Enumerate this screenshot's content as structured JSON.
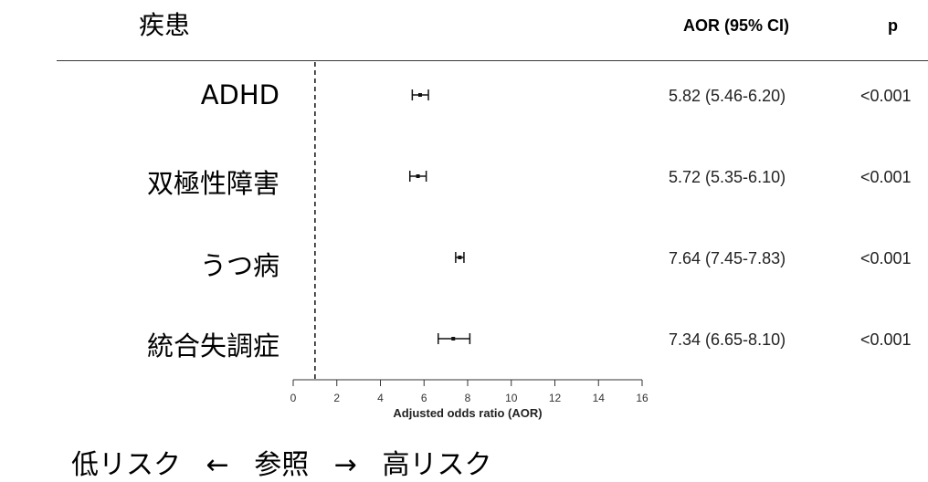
{
  "header": {
    "disease_label": "疾患",
    "aor_label": "AOR (95% CI)",
    "p_label": "p"
  },
  "rows": [
    {
      "disease": "ADHD",
      "aor_text": "5.82 (5.46-6.20)",
      "p": "<0.001"
    },
    {
      "disease": "双極性障害",
      "aor_text": "5.72 (5.35-6.10)",
      "p": "<0.001"
    },
    {
      "disease": "うつ病",
      "aor_text": "7.64 (7.45-7.83)",
      "p": "<0.001"
    },
    {
      "disease": "統合失調症",
      "aor_text": "7.34 (6.65-8.10)",
      "p": "<0.001"
    }
  ],
  "chart_data": {
    "type": "forest",
    "xlabel": "Adjusted odds ratio (AOR)",
    "xlim": [
      0,
      16
    ],
    "xticks": [
      0,
      2,
      4,
      6,
      8,
      10,
      12,
      14,
      16
    ],
    "reference_line": 1,
    "categories": [
      "ADHD",
      "双極性障害",
      "うつ病",
      "統合失調症"
    ],
    "estimates": [
      5.82,
      5.72,
      7.64,
      7.34
    ],
    "lower": [
      5.46,
      5.35,
      7.45,
      6.65
    ],
    "upper": [
      6.2,
      6.1,
      7.83,
      8.1
    ]
  },
  "footer": {
    "low": "低リスク",
    "arrow_left": "←",
    "ref": "参照",
    "arrow_right": "→",
    "high": "高リスク"
  }
}
